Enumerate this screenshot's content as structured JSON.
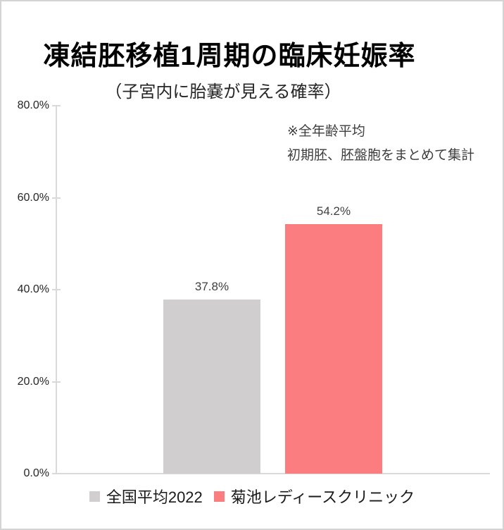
{
  "chart_data": {
    "type": "bar",
    "title": "凍結胚移植1周期の臨床妊娠率",
    "subtitle": "（子宮内に胎嚢が見える確率）",
    "annotation_lines": [
      "※全年齢平均",
      "初期胚、胚盤胞をまとめて集計"
    ],
    "categories": [
      "全国平均2022",
      "菊池レディースクリニック"
    ],
    "series": [
      {
        "name": "全国平均2022",
        "value": 37.8,
        "label": "37.8%",
        "color": "#d0cece"
      },
      {
        "name": "菊池レディースクリニック",
        "value": 54.2,
        "label": "54.2%",
        "color": "#fc7d80"
      }
    ],
    "xlabel": "",
    "ylabel": "",
    "ylim": [
      0,
      80
    ],
    "yticks": [
      {
        "value": 0,
        "label": "0.0%"
      },
      {
        "value": 20,
        "label": "20.0%"
      },
      {
        "value": 40,
        "label": "40.0%"
      },
      {
        "value": 60,
        "label": "60.0%"
      },
      {
        "value": 80,
        "label": "80.0%"
      }
    ],
    "grid": false,
    "legend_position": "bottom"
  },
  "colors": {
    "axis_line": "#d9d9d9",
    "frame_border": "#d4d4d4",
    "title_text": "#000000",
    "label_text": "#404040",
    "background": "#ffffff"
  }
}
